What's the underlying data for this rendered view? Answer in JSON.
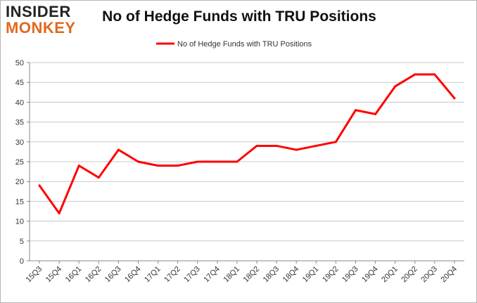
{
  "logo": {
    "line1": "INSIDER",
    "line2": "MONKEY"
  },
  "chart_data": {
    "type": "line",
    "title": "No of Hedge Funds with TRU Positions",
    "xlabel": "",
    "ylabel": "",
    "categories": [
      "15Q3",
      "15Q4",
      "16Q1",
      "16Q2",
      "16Q3",
      "16Q4",
      "17Q1",
      "17Q2",
      "17Q3",
      "17Q4",
      "18Q1",
      "18Q2",
      "18Q3",
      "18Q4",
      "19Q1",
      "19Q2",
      "19Q3",
      "19Q4",
      "20Q1",
      "20Q2",
      "20Q3",
      "20Q4"
    ],
    "series": [
      {
        "name": "No of Hedge Funds with TRU Positions",
        "values": [
          19,
          12,
          24,
          21,
          28,
          25,
          24,
          24,
          25,
          25,
          25,
          29,
          29,
          28,
          29,
          30,
          38,
          37,
          44,
          47,
          47,
          41
        ],
        "color": "#ff0000"
      }
    ],
    "ylim": [
      0,
      50
    ],
    "yticks": [
      0,
      5,
      10,
      15,
      20,
      25,
      30,
      35,
      40,
      45,
      50
    ],
    "grid": true,
    "legend": "top-center"
  }
}
